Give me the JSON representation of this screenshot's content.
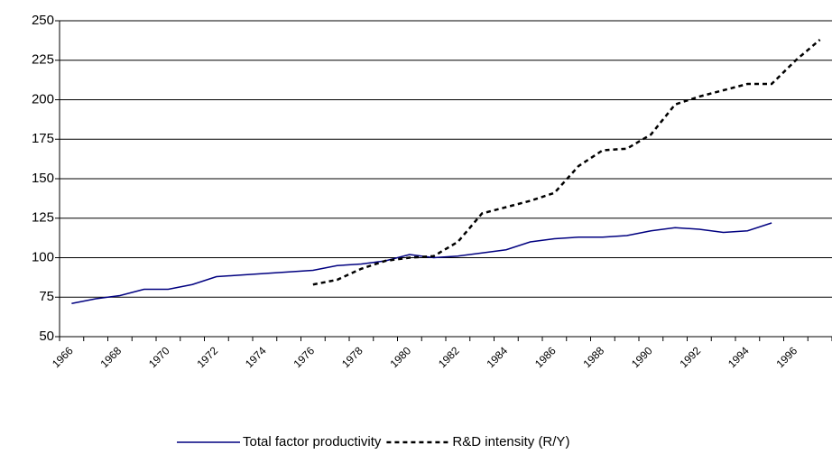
{
  "chart_data": {
    "type": "line",
    "categories": [
      "1966",
      null,
      "1968",
      null,
      "1970",
      null,
      "1972",
      null,
      "1974",
      null,
      "1976",
      null,
      "1978",
      null,
      "1980",
      null,
      "1982",
      null,
      "1984",
      null,
      "1986",
      null,
      "1988",
      null,
      "1990",
      null,
      "1992",
      null,
      "1994",
      null,
      "1996",
      null
    ],
    "series": [
      {
        "name": "Total factor productivity",
        "color": "#000080",
        "dash": false,
        "values": [
          71,
          74,
          76,
          80,
          80,
          83,
          88,
          89,
          90,
          91,
          92,
          95,
          96,
          98,
          102,
          100,
          101,
          103,
          105,
          110,
          112,
          113,
          113,
          114,
          117,
          119,
          118,
          116,
          117,
          122,
          null,
          null
        ]
      },
      {
        "name": "R&D intensity (R/Y)",
        "color": "#000000",
        "dash": true,
        "values": [
          null,
          null,
          null,
          null,
          null,
          null,
          null,
          null,
          null,
          null,
          83,
          86,
          93,
          98,
          100,
          101,
          110,
          128,
          132,
          136,
          141,
          158,
          168,
          169,
          178,
          197,
          202,
          206,
          210,
          210,
          225,
          238
        ]
      }
    ],
    "ylim": [
      50,
      250
    ],
    "yticks": [
      50,
      75,
      100,
      125,
      150,
      175,
      200,
      225,
      250
    ],
    "grid": true
  }
}
